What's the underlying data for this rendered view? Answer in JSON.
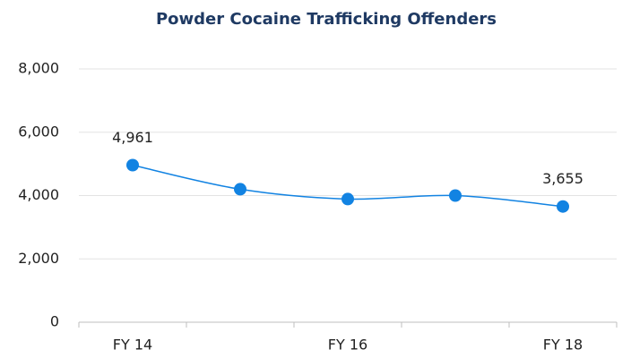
{
  "chart_data": {
    "type": "line",
    "title": "Powder Cocaine Trafficking Offenders",
    "categories": [
      "FY 14",
      null,
      "FY 16",
      null,
      "FY 18"
    ],
    "series": [
      {
        "name": "Powder Cocaine Trafficking Offenders",
        "color": "#1283e2",
        "values": [
          4961,
          4200,
          3890,
          4000,
          3655
        ],
        "value_labels": [
          "4,961",
          null,
          null,
          null,
          "3,655"
        ]
      }
    ],
    "ylim": [
      0,
      8000
    ],
    "yticks": [
      0,
      {
        "value": 2000,
        "label": "2,000"
      },
      {
        "value": 4000,
        "label": "4,000"
      },
      {
        "value": 6000,
        "label": "6,000"
      },
      {
        "value": 8000,
        "label": "8,000"
      }
    ],
    "grid": true
  }
}
